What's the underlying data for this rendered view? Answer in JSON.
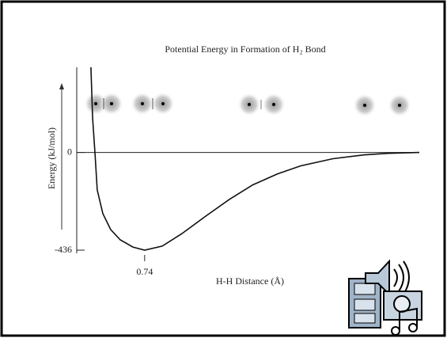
{
  "chart_data": {
    "type": "line",
    "title": "Potential Energy in Formation of H₂ Bond",
    "xlabel": "H-H Distance (Å)",
    "ylabel": "Energy (kJ/mol)",
    "x": [
      0.392,
      0.403,
      0.418,
      0.433,
      0.469,
      0.52,
      0.582,
      0.664,
      0.74,
      0.854,
      0.982,
      1.136,
      1.29,
      1.44,
      1.6,
      1.75,
      1.96,
      2.16,
      2.32,
      2.52
    ],
    "values": [
      380,
      152,
      0,
      -167,
      -273,
      -344,
      -390,
      -422,
      -436,
      -418,
      -362,
      -284,
      -209,
      -145,
      -96,
      -60,
      -28,
      -11,
      -4,
      0
    ],
    "color": "#111111",
    "xlim": [
      0.3,
      2.52
    ],
    "ylim": [
      -450,
      380
    ],
    "xticks": [
      0.74
    ],
    "yticks": [
      0,
      -436
    ]
  }
}
